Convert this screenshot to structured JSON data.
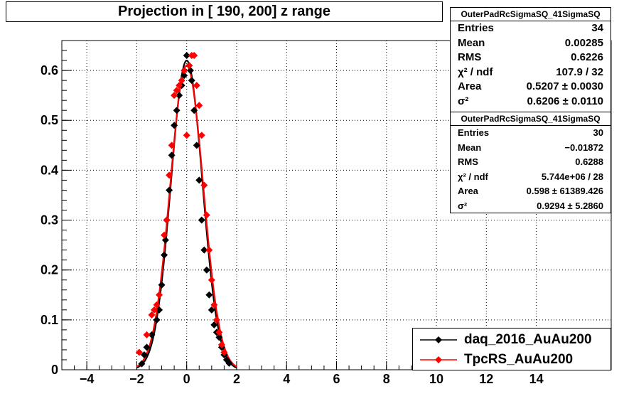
{
  "title": "Projection in [ 190, 200] z range",
  "chart_data": {
    "type": "scatter",
    "xlim": [
      -5,
      17
    ],
    "ylim": [
      0,
      0.66
    ],
    "x_ticks": [
      -4,
      -2,
      0,
      2,
      4,
      6,
      8,
      10,
      12,
      14
    ],
    "y_ticks": [
      0,
      0.1,
      0.2,
      0.3,
      0.4,
      0.5,
      0.6
    ],
    "x_tick_labels": [
      "−4",
      "−2",
      "0",
      "2",
      "4",
      "6",
      "8",
      "10",
      "12",
      "14"
    ],
    "y_tick_labels": [
      "0",
      "0.1",
      "0.2",
      "0.3",
      "0.4",
      "0.5",
      "0.6"
    ],
    "grid": true,
    "legend_position": "bottom-right",
    "series": [
      {
        "name": "daq_2016_AuAu200",
        "color": "#000000",
        "x": [
          -1.8,
          -1.7,
          -1.6,
          -1.4,
          -1.2,
          -1.1,
          -1.0,
          -0.9,
          -0.85,
          -0.8,
          -0.7,
          -0.6,
          -0.5,
          -0.4,
          -0.3,
          -0.2,
          -0.1,
          0.0,
          0.1,
          0.15,
          0.2,
          0.3,
          0.4,
          0.5,
          0.6,
          0.7,
          0.8,
          0.9,
          1.0,
          1.1,
          1.2,
          1.3,
          1.4,
          1.5,
          1.6,
          1.7
        ],
        "y": [
          0.012,
          0.03,
          0.045,
          0.07,
          0.1,
          0.12,
          0.17,
          0.23,
          0.26,
          0.3,
          0.36,
          0.43,
          0.49,
          0.52,
          0.55,
          0.57,
          0.59,
          0.63,
          0.61,
          0.6,
          0.58,
          0.52,
          0.45,
          0.38,
          0.3,
          0.24,
          0.2,
          0.15,
          0.12,
          0.09,
          0.075,
          0.065,
          0.045,
          0.03,
          0.02,
          0.013
        ],
        "fit_sigma": 0.6206,
        "fit_area": 0.5207
      },
      {
        "name": "TpcRS_AuAu200",
        "color": "#ff0000",
        "x": [
          -1.9,
          -1.6,
          -1.4,
          -1.3,
          -1.2,
          -1.1,
          -0.9,
          -0.8,
          -0.7,
          -0.6,
          -0.5,
          -0.4,
          -0.3,
          -0.2,
          -0.1,
          0.0,
          0.1,
          0.2,
          0.3,
          0.4,
          0.5,
          0.6,
          0.7,
          0.8,
          0.9,
          1.0,
          1.1,
          1.2,
          1.3,
          1.4,
          1.5
        ],
        "y": [
          0.035,
          0.07,
          0.11,
          0.12,
          0.13,
          0.15,
          0.27,
          0.3,
          0.39,
          0.45,
          0.55,
          0.56,
          0.57,
          0.58,
          0.6,
          0.47,
          0.61,
          0.63,
          0.63,
          0.57,
          0.53,
          0.47,
          0.37,
          0.31,
          0.24,
          0.18,
          0.13,
          0.1,
          0.075,
          0.05,
          0.035
        ],
        "fit_sigma": 0.9294,
        "fit_area": 0.598
      }
    ]
  },
  "stats1": {
    "title": "OuterPadRcSigmaSQ_41SigmaSQ",
    "rows": [
      {
        "label": "Entries",
        "value": "34"
      },
      {
        "label": "Mean",
        "value": "0.00285"
      },
      {
        "label": "RMS",
        "value": "0.6226"
      },
      {
        "label": "χ² / ndf",
        "value": "107.9 / 32"
      },
      {
        "label": "Area",
        "value": "0.5207 ± 0.0030"
      },
      {
        "label": "σ²",
        "value": "0.6206 ± 0.0110"
      }
    ]
  },
  "stats2": {
    "title": "OuterPadRcSigmaSQ_41SigmaSQ",
    "rows": [
      {
        "label": "Entries",
        "value": "30"
      },
      {
        "label": "Mean",
        "value": "−0.01872"
      },
      {
        "label": "RMS",
        "value": "0.6288"
      },
      {
        "label": "χ² / ndf",
        "value": "5.744e+06 / 28"
      },
      {
        "label": "Area",
        "value": "0.598 ± 61389.426"
      },
      {
        "label": "σ²",
        "value": "0.9294 ± 5.2860"
      }
    ]
  },
  "legend": [
    {
      "label": "daq_2016_AuAu200",
      "color": "#000000"
    },
    {
      "label": "TpcRS_AuAu200",
      "color": "#ff0000"
    }
  ]
}
